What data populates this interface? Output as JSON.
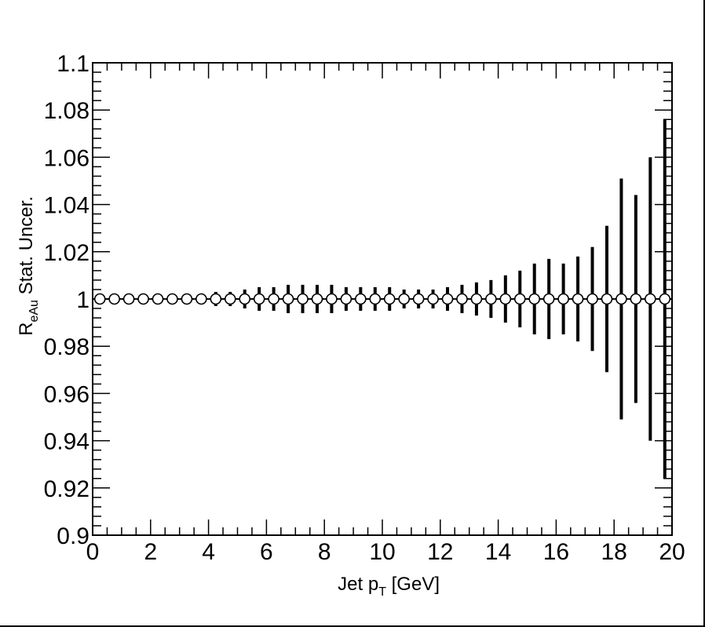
{
  "chart_data": {
    "type": "scatter",
    "title": "",
    "xlabel": {
      "main": "Jet p",
      "sub": "T",
      "suffix": " [GeV]"
    },
    "ylabel": {
      "main": "R",
      "sub": "eAu",
      "suffix": " Stat. Uncer."
    },
    "xlim": [
      0,
      20
    ],
    "ylim": [
      0.9,
      1.1
    ],
    "xticks": [
      0,
      2,
      4,
      6,
      8,
      10,
      12,
      14,
      16,
      18,
      20
    ],
    "xtick_labels": [
      "0",
      "2",
      "4",
      "6",
      "8",
      "10",
      "12",
      "14",
      "16",
      "18",
      "20"
    ],
    "yticks": [
      0.9,
      0.92,
      0.94,
      0.96,
      0.98,
      1.0,
      1.02,
      1.04,
      1.06,
      1.08,
      1.1
    ],
    "ytick_labels": [
      "0.9",
      "0.92",
      "0.94",
      "0.96",
      "0.98",
      "1",
      "1.02",
      "1.04",
      "1.06",
      "1.08",
      "1.1"
    ],
    "grid": false,
    "marker": "open-circle",
    "series": [
      {
        "x": [
          0.25,
          0.75,
          1.25,
          1.75,
          2.25,
          2.75,
          3.25,
          3.75,
          4.25,
          4.75,
          5.25,
          5.75,
          6.25,
          6.75,
          7.25,
          7.75,
          8.25,
          8.75,
          9.25,
          9.75,
          10.25,
          10.75,
          11.25,
          11.75,
          12.25,
          12.75,
          13.25,
          13.75,
          14.25,
          14.75,
          15.25,
          15.75,
          16.25,
          16.75,
          17.25,
          17.75,
          18.25,
          18.75,
          19.25,
          19.75
        ],
        "y": [
          1,
          1,
          1,
          1,
          1,
          1,
          1,
          1,
          1,
          1,
          1,
          1,
          1,
          1,
          1,
          1,
          1,
          1,
          1,
          1,
          1,
          1,
          1,
          1,
          1,
          1,
          1,
          1,
          1,
          1,
          1,
          1,
          1,
          1,
          1,
          1,
          1,
          1,
          1,
          1
        ],
        "yerr": [
          0.0005,
          0.0005,
          0.0005,
          0.0005,
          0.001,
          0.001,
          0.001,
          0.002,
          0.003,
          0.003,
          0.004,
          0.005,
          0.005,
          0.006,
          0.006,
          0.006,
          0.006,
          0.005,
          0.005,
          0.005,
          0.005,
          0.004,
          0.004,
          0.004,
          0.005,
          0.006,
          0.007,
          0.008,
          0.01,
          0.012,
          0.015,
          0.017,
          0.015,
          0.018,
          0.022,
          0.031,
          0.051,
          0.044,
          0.06,
          0.076
        ]
      }
    ]
  }
}
